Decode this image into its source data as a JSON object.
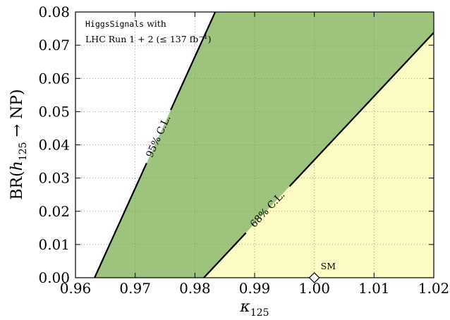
{
  "chart_data": {
    "type": "area",
    "xlabel_base": "κ",
    "xlabel_sub": "125",
    "ylabel_prefix": "BR(",
    "ylabel_h": "h",
    "ylabel_sub": "125",
    "ylabel_suffix": " → NP)",
    "xlim": [
      0.96,
      1.02
    ],
    "ylim": [
      0.0,
      0.08
    ],
    "x_ticks": [
      "0.96",
      "0.97",
      "0.98",
      "0.99",
      "1.00",
      "1.01",
      "1.02"
    ],
    "x_tick_values": [
      0.96,
      0.97,
      0.98,
      0.99,
      1.0,
      1.01,
      1.02
    ],
    "y_ticks": [
      "0.00",
      "0.01",
      "0.02",
      "0.03",
      "0.04",
      "0.05",
      "0.06",
      "0.07",
      "0.08"
    ],
    "y_tick_values": [
      0.0,
      0.01,
      0.02,
      0.03,
      0.04,
      0.05,
      0.06,
      0.07,
      0.08
    ],
    "grid": true,
    "regions": [
      {
        "label": "95% C.L.",
        "color": "#9dc37c",
        "lower_boundary": {
          "x": [
            0.9632,
            0.9834
          ],
          "y": [
            0.0,
            0.08
          ]
        },
        "upper_boundary": {
          "x": [
            0.9815,
            1.02
          ],
          "y": [
            0.0,
            0.0738
          ]
        }
      },
      {
        "label": "68% C.L.",
        "color": "#fdfbc4",
        "lower_boundary": {
          "x": [
            0.9815,
            1.02
          ],
          "y": [
            0.0,
            0.0738
          ]
        }
      }
    ],
    "points": [
      {
        "label": "SM",
        "x": 1.0,
        "y": 0.0,
        "marker": "diamond"
      }
    ],
    "annotation": {
      "line1_mono": "HiggsSignals",
      "line1_rest": " with",
      "line2": "LHC Run 1 + 2 (≤ 137 fb",
      "line2_sup": "−1",
      "line2_end": ")"
    },
    "colors": {
      "band95": "#9dc37c",
      "region68": "#fdfbc4",
      "line": "#000000",
      "grid": "#888888"
    }
  }
}
